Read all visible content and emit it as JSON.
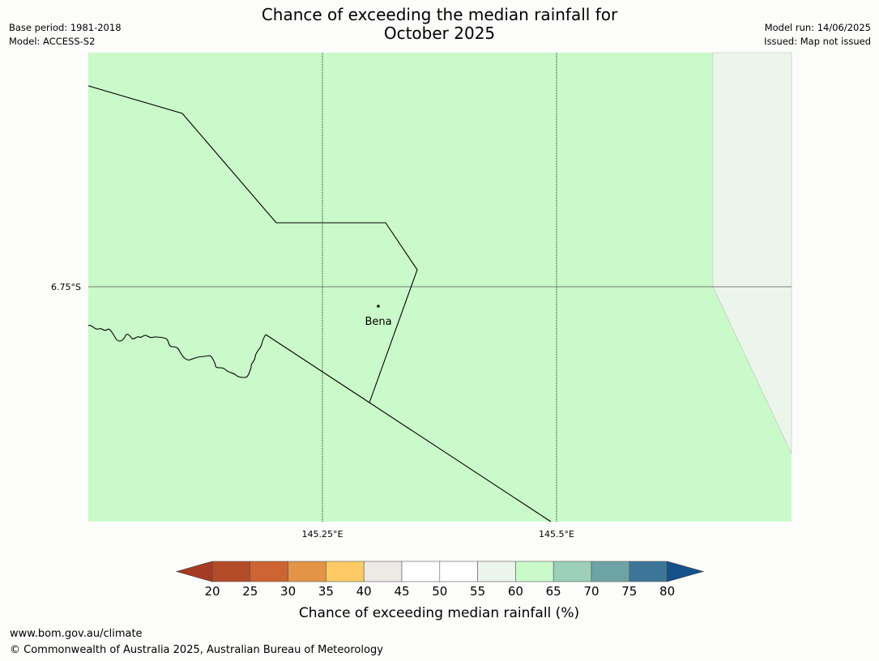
{
  "header": {
    "title_line1": "Chance of exceeding the median rainfall for",
    "title_line2": "October 2025",
    "base_period": "Base period: 1981-2018",
    "model": "Model: ACCESS-S2",
    "model_run": "Model run: 14/06/2025",
    "issued": "Issued: Map not issued"
  },
  "map": {
    "place": {
      "name": "Bena"
    },
    "graticule": {
      "lon_labels": [
        "145.25°E",
        "145.5°E"
      ],
      "lat_labels": [
        "6.75°S"
      ]
    },
    "colors": {
      "region_main": "#caf9ca",
      "region_east": "#ecf5ec",
      "border": "#000000"
    }
  },
  "legend": {
    "title": "Chance of exceeding median rainfall (%)",
    "ticks": [
      "20",
      "25",
      "30",
      "35",
      "40",
      "45",
      "50",
      "55",
      "60",
      "65",
      "70",
      "75",
      "80"
    ],
    "colors": [
      "#a63a22",
      "#b34a28",
      "#cd6431",
      "#e39446",
      "#fdca65",
      "#ede9e5",
      "#ffffff",
      "#ffffff",
      "#ecf5ec",
      "#caf9ca",
      "#9ccfb8",
      "#6ea3a6",
      "#3d7598",
      "#16508a"
    ]
  },
  "footer": {
    "url": "www.bom.gov.au/climate",
    "copyright": "© Commonwealth of Australia 2025, Australian Bureau of Meteorology"
  }
}
